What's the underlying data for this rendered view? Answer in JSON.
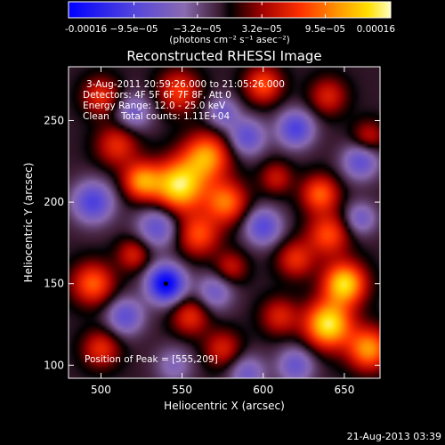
{
  "chart_data": {
    "type": "heatmap",
    "title": "Reconstructed RHESSI Image",
    "xlabel": "Heliocentric X (arcsec)",
    "ylabel": "Heliocentric Y (arcsec)",
    "xlim": [
      480,
      672
    ],
    "ylim": [
      92,
      283
    ],
    "x_ticks": [
      500,
      550,
      600,
      650
    ],
    "y_ticks": [
      100,
      150,
      200,
      250
    ],
    "colorbar": {
      "range": [
        -0.00016,
        0.00016
      ],
      "tick_values": [
        -0.00016,
        -9.5e-05,
        -3.2e-05,
        3.2e-05,
        9.5e-05,
        0.00016
      ],
      "tick_labels": [
        "-0.00016",
        "−9.5e−05",
        "−3.2e−05",
        "3.2e−05",
        "9.5e−05",
        "0.00016"
      ],
      "unit_label": "(photons cm⁻² s⁻¹ asec⁻²)"
    },
    "annotations": [
      "3-Aug-2011 20:59:26.000 to 21:05:26.000",
      "Detectors: 4F 5F 6F 7F 8F, Att 0",
      "Energy Range: 12.0 - 25.0 keV",
      "Clean    Total counts: 1.11E+04"
    ],
    "peak_label": "Position of Peak = [555,209]",
    "peak_position": [
      555,
      209
    ],
    "min_marker": [
      540,
      150
    ],
    "sources": [
      {
        "x": 548,
        "y": 210,
        "v": 1.0,
        "s": 11
      },
      {
        "x": 525,
        "y": 213,
        "v": 0.7,
        "s": 8
      },
      {
        "x": 565,
        "y": 228,
        "v": 0.75,
        "s": 10
      },
      {
        "x": 577,
        "y": 200,
        "v": 0.65,
        "s": 9
      },
      {
        "x": 560,
        "y": 180,
        "v": 0.55,
        "s": 9
      },
      {
        "x": 510,
        "y": 235,
        "v": 0.45,
        "s": 9
      },
      {
        "x": 500,
        "y": 265,
        "v": 0.45,
        "s": 8
      },
      {
        "x": 548,
        "y": 268,
        "v": 0.5,
        "s": 9
      },
      {
        "x": 600,
        "y": 272,
        "v": 0.55,
        "s": 8
      },
      {
        "x": 640,
        "y": 265,
        "v": 0.4,
        "s": 8
      },
      {
        "x": 665,
        "y": 240,
        "v": 0.35,
        "s": 7
      },
      {
        "x": 608,
        "y": 215,
        "v": 0.35,
        "s": 7
      },
      {
        "x": 635,
        "y": 205,
        "v": 0.6,
        "s": 8
      },
      {
        "x": 640,
        "y": 180,
        "v": 0.55,
        "s": 9
      },
      {
        "x": 620,
        "y": 165,
        "v": 0.45,
        "s": 8
      },
      {
        "x": 650,
        "y": 150,
        "v": 0.95,
        "s": 9
      },
      {
        "x": 640,
        "y": 125,
        "v": 1.0,
        "s": 10
      },
      {
        "x": 665,
        "y": 110,
        "v": 0.75,
        "s": 9
      },
      {
        "x": 610,
        "y": 130,
        "v": 0.4,
        "s": 8
      },
      {
        "x": 555,
        "y": 130,
        "v": 0.45,
        "s": 8
      },
      {
        "x": 575,
        "y": 110,
        "v": 0.4,
        "s": 8
      },
      {
        "x": 500,
        "y": 110,
        "v": 0.45,
        "s": 8
      },
      {
        "x": 495,
        "y": 150,
        "v": 0.6,
        "s": 9
      },
      {
        "x": 520,
        "y": 168,
        "v": 0.4,
        "s": 7
      },
      {
        "x": 580,
        "y": 160,
        "v": 0.35,
        "s": 7
      },
      {
        "x": 540,
        "y": 150,
        "v": -1.0,
        "s": 8
      },
      {
        "x": 495,
        "y": 200,
        "v": -0.6,
        "s": 9
      },
      {
        "x": 535,
        "y": 185,
        "v": -0.5,
        "s": 9
      },
      {
        "x": 590,
        "y": 240,
        "v": -0.5,
        "s": 8
      },
      {
        "x": 620,
        "y": 245,
        "v": -0.6,
        "s": 8
      },
      {
        "x": 600,
        "y": 185,
        "v": -0.55,
        "s": 8
      },
      {
        "x": 660,
        "y": 225,
        "v": -0.5,
        "s": 8
      },
      {
        "x": 570,
        "y": 145,
        "v": -0.4,
        "s": 8
      },
      {
        "x": 515,
        "y": 130,
        "v": -0.5,
        "s": 8
      },
      {
        "x": 590,
        "y": 95,
        "v": -0.4,
        "s": 8
      },
      {
        "x": 620,
        "y": 100,
        "v": -0.45,
        "s": 8
      },
      {
        "x": 520,
        "y": 255,
        "v": -0.4,
        "s": 8
      },
      {
        "x": 575,
        "y": 255,
        "v": -0.4,
        "s": 7
      },
      {
        "x": 660,
        "y": 190,
        "v": -0.4,
        "s": 7
      },
      {
        "x": 545,
        "y": 100,
        "v": -0.3,
        "s": 8
      }
    ]
  },
  "footer": {
    "timestamp": "21-Aug-2013 03:39"
  }
}
